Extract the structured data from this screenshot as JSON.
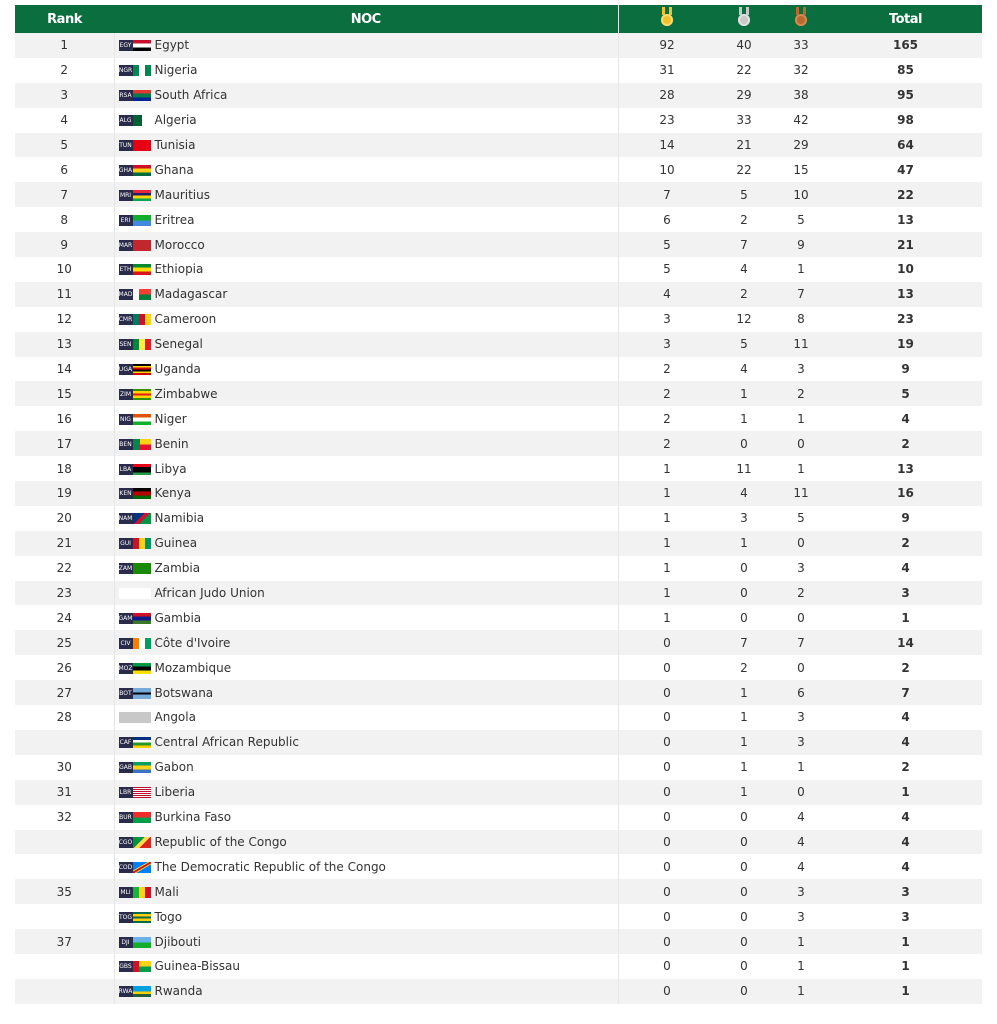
{
  "header": {
    "rank": "Rank",
    "noc": "NOC",
    "gold_icon": "gold-medal-icon",
    "silver_icon": "silver-medal-icon",
    "bronze_icon": "bronze-medal-icon",
    "total": "Total"
  },
  "colors": {
    "header_bg": "#0b6e3f",
    "gold": "#f2c12e",
    "silver": "#c8c8c8",
    "bronze": "#b8692e"
  },
  "rows": [
    {
      "rank": "1",
      "code": "EGY",
      "name": "Egypt",
      "gold": "92",
      "silver": "40",
      "bronze": "33",
      "total": "165",
      "flag": "linear-gradient(#c8102e 33%,#fff 33% 66%,#000 66%)"
    },
    {
      "rank": "2",
      "code": "NGR",
      "name": "Nigeria",
      "gold": "31",
      "silver": "22",
      "bronze": "32",
      "total": "85",
      "flag": "linear-gradient(90deg,#008751 33%,#fff 33% 66%,#008751 66%)"
    },
    {
      "rank": "3",
      "code": "RSA",
      "name": "South Africa",
      "gold": "28",
      "silver": "29",
      "bronze": "38",
      "total": "95",
      "flag": "linear-gradient(#de3831 33%,#007a4d 33% 66%,#002395 66%)"
    },
    {
      "rank": "4",
      "code": "ALG",
      "name": "Algeria",
      "gold": "23",
      "silver": "33",
      "bronze": "42",
      "total": "98",
      "flag": "linear-gradient(90deg,#006233 50%,#fff 50%)"
    },
    {
      "rank": "5",
      "code": "TUN",
      "name": "Tunisia",
      "gold": "14",
      "silver": "21",
      "bronze": "29",
      "total": "64",
      "flag": "#e70013"
    },
    {
      "rank": "6",
      "code": "GHA",
      "name": "Ghana",
      "gold": "10",
      "silver": "22",
      "bronze": "15",
      "total": "47",
      "flag": "linear-gradient(#ce1126 33%,#fcd116 33% 66%,#006b3f 66%)"
    },
    {
      "rank": "7",
      "code": "MRI",
      "name": "Mauritius",
      "gold": "7",
      "silver": "5",
      "bronze": "10",
      "total": "22",
      "flag": "linear-gradient(#ea2839 25%,#1a206d 25% 50%,#ffd500 50% 75%,#00a551 75%)"
    },
    {
      "rank": "8",
      "code": "ERI",
      "name": "Eritrea",
      "gold": "6",
      "silver": "2",
      "bronze": "5",
      "total": "13",
      "flag": "linear-gradient(#12ad2b 50%,#4189dd 50%)"
    },
    {
      "rank": "9",
      "code": "MAR",
      "name": "Morocco",
      "gold": "5",
      "silver": "7",
      "bronze": "9",
      "total": "21",
      "flag": "#c1272d"
    },
    {
      "rank": "10",
      "code": "ETH",
      "name": "Ethiopia",
      "gold": "5",
      "silver": "4",
      "bronze": "1",
      "total": "10",
      "flag": "linear-gradient(#078930 33%,#fcdd09 33% 66%,#da121a 66%)"
    },
    {
      "rank": "11",
      "code": "MAD",
      "name": "Madagascar",
      "gold": "4",
      "silver": "2",
      "bronze": "7",
      "total": "13",
      "flag": "linear-gradient(90deg,#fff 33%,transparent 33%),linear-gradient(#fc3d32 50%,#007e3a 50%)"
    },
    {
      "rank": "12",
      "code": "CMR",
      "name": "Cameroon",
      "gold": "3",
      "silver": "12",
      "bronze": "8",
      "total": "23",
      "flag": "linear-gradient(90deg,#007a5e 33%,#ce1126 33% 66%,#fcd116 66%)"
    },
    {
      "rank": "13",
      "code": "SEN",
      "name": "Senegal",
      "gold": "3",
      "silver": "5",
      "bronze": "11",
      "total": "19",
      "flag": "linear-gradient(90deg,#00853f 33%,#fdef42 33% 66%,#e31b23 66%)"
    },
    {
      "rank": "14",
      "code": "UGA",
      "name": "Uganda",
      "gold": "2",
      "silver": "4",
      "bronze": "3",
      "total": "9",
      "flag": "linear-gradient(#000 17%,#fcdc04 17% 33%,#d90000 33% 50%,#000 50% 67%,#fcdc04 67% 83%,#d90000 83%)"
    },
    {
      "rank": "15",
      "code": "ZIM",
      "name": "Zimbabwe",
      "gold": "2",
      "silver": "1",
      "bronze": "2",
      "total": "5",
      "flag": "linear-gradient(#319208 20%,#ffd200 20% 40%,#de2010 40% 60%,#ffd200 60% 80%,#319208 80%)"
    },
    {
      "rank": "16",
      "code": "NIG",
      "name": "Niger",
      "gold": "2",
      "silver": "1",
      "bronze": "1",
      "total": "4",
      "flag": "linear-gradient(#e05206 33%,#fff 33% 66%,#0db02b 66%)"
    },
    {
      "rank": "17",
      "code": "BEN",
      "name": "Benin",
      "gold": "2",
      "silver": "0",
      "bronze": "0",
      "total": "2",
      "flag": "linear-gradient(90deg,#008751 40%,transparent 40%),linear-gradient(#fcd116 50%,#e8112d 50%)"
    },
    {
      "rank": "18",
      "code": "LBA",
      "name": "Libya",
      "gold": "1",
      "silver": "11",
      "bronze": "1",
      "total": "13",
      "flag": "linear-gradient(#e70013 25%,#000 25% 75%,#239e46 75%)"
    },
    {
      "rank": "19",
      "code": "KEN",
      "name": "Kenya",
      "gold": "1",
      "silver": "4",
      "bronze": "11",
      "total": "16",
      "flag": "linear-gradient(#000 33%,#bb0000 33% 66%,#006600 66%)"
    },
    {
      "rank": "20",
      "code": "NAM",
      "name": "Namibia",
      "gold": "1",
      "silver": "3",
      "bronze": "5",
      "total": "9",
      "flag": "linear-gradient(135deg,#003580 40%,#d21034 40% 60%,#009543 60%)"
    },
    {
      "rank": "21",
      "code": "GUI",
      "name": "Guinea",
      "gold": "1",
      "silver": "1",
      "bronze": "0",
      "total": "2",
      "flag": "linear-gradient(90deg,#ce1126 33%,#fcd116 33% 66%,#009460 66%)"
    },
    {
      "rank": "22",
      "code": "ZAM",
      "name": "Zambia",
      "gold": "1",
      "silver": "0",
      "bronze": "3",
      "total": "4",
      "flag": "#198a00"
    },
    {
      "rank": "23",
      "code": "",
      "name": "African Judo Union",
      "gold": "1",
      "silver": "0",
      "bronze": "2",
      "total": "3",
      "flag": "#ffffff"
    },
    {
      "rank": "24",
      "code": "GAM",
      "name": "Gambia",
      "gold": "1",
      "silver": "0",
      "bronze": "0",
      "total": "1",
      "flag": "linear-gradient(#ce1126 33%,#0c1c8c 33% 66%,#3a7728 66%)"
    },
    {
      "rank": "25",
      "code": "CIV",
      "name": "Côte d'Ivoire",
      "gold": "0",
      "silver": "7",
      "bronze": "7",
      "total": "14",
      "flag": "linear-gradient(90deg,#f77f00 33%,#fff 33% 66%,#009e60 66%)"
    },
    {
      "rank": "26",
      "code": "MOZ",
      "name": "Mozambique",
      "gold": "0",
      "silver": "2",
      "bronze": "0",
      "total": "2",
      "flag": "linear-gradient(#009a44 33%,#000 33% 66%,#fce100 66%)"
    },
    {
      "rank": "27",
      "code": "BOT",
      "name": "Botswana",
      "gold": "0",
      "silver": "1",
      "bronze": "6",
      "total": "7",
      "flag": "linear-gradient(#75aadb 40%,#000 40% 60%,#75aadb 60%)"
    },
    {
      "rank": "28",
      "code": "",
      "name": "Angola",
      "gold": "0",
      "silver": "1",
      "bronze": "3",
      "total": "4",
      "flag": "#c8c8c8"
    },
    {
      "rank": "",
      "code": "CAF",
      "name": "Central African Republic",
      "gold": "0",
      "silver": "1",
      "bronze": "3",
      "total": "4",
      "flag": "linear-gradient(#003082 25%,#fff 25% 50%,#289728 50% 75%,#ffce00 75%)"
    },
    {
      "rank": "30",
      "code": "GAB",
      "name": "Gabon",
      "gold": "0",
      "silver": "1",
      "bronze": "1",
      "total": "2",
      "flag": "linear-gradient(#009e60 33%,#fcd116 33% 66%,#3a75c4 66%)"
    },
    {
      "rank": "31",
      "code": "LBR",
      "name": "Liberia",
      "gold": "0",
      "silver": "1",
      "bronze": "0",
      "total": "1",
      "flag": "repeating-linear-gradient(#bf0a30 0 1px,#fff 1px 2px)"
    },
    {
      "rank": "32",
      "code": "BUR",
      "name": "Burkina Faso",
      "gold": "0",
      "silver": "0",
      "bronze": "4",
      "total": "4",
      "flag": "linear-gradient(#ef2b2d 50%,#009e49 50%)"
    },
    {
      "rank": "",
      "code": "CGO",
      "name": "Republic of the Congo",
      "gold": "0",
      "silver": "0",
      "bronze": "4",
      "total": "4",
      "flag": "linear-gradient(135deg,#009543 40%,#fbde4a 40% 60%,#dc241f 60%)"
    },
    {
      "rank": "",
      "code": "COD",
      "name": "The Democratic Republic of the Congo",
      "gold": "0",
      "silver": "0",
      "bronze": "4",
      "total": "4",
      "flag": "linear-gradient(150deg,#007fff 40%,#f7d618 40% 45%,#ce1021 45% 55%,#f7d618 55% 60%,#007fff 60%)"
    },
    {
      "rank": "35",
      "code": "MLI",
      "name": "Mali",
      "gold": "0",
      "silver": "0",
      "bronze": "3",
      "total": "3",
      "flag": "linear-gradient(90deg,#14b53a 33%,#fcd116 33% 66%,#ce1126 66%)"
    },
    {
      "rank": "",
      "code": "TOG",
      "name": "Togo",
      "gold": "0",
      "silver": "0",
      "bronze": "3",
      "total": "3",
      "flag": "linear-gradient(#006a4e 20%,#ffce00 20% 40%,#006a4e 40% 60%,#ffce00 60% 80%,#006a4e 80%)"
    },
    {
      "rank": "37",
      "code": "DJI",
      "name": "Djibouti",
      "gold": "0",
      "silver": "0",
      "bronze": "1",
      "total": "1",
      "flag": "linear-gradient(#6ab2e7 50%,#12ad2b 50%)"
    },
    {
      "rank": "",
      "code": "GBS",
      "name": "Guinea-Bissau",
      "gold": "0",
      "silver": "0",
      "bronze": "1",
      "total": "1",
      "flag": "linear-gradient(90deg,#ce1126 33%,transparent 33%),linear-gradient(#fcd116 50%,#009e49 50%)"
    },
    {
      "rank": "",
      "code": "RWA",
      "name": "Rwanda",
      "gold": "0",
      "silver": "0",
      "bronze": "1",
      "total": "1",
      "flag": "linear-gradient(#00a1de 50%,#fad201 50% 75%,#20603d 75%)"
    }
  ]
}
